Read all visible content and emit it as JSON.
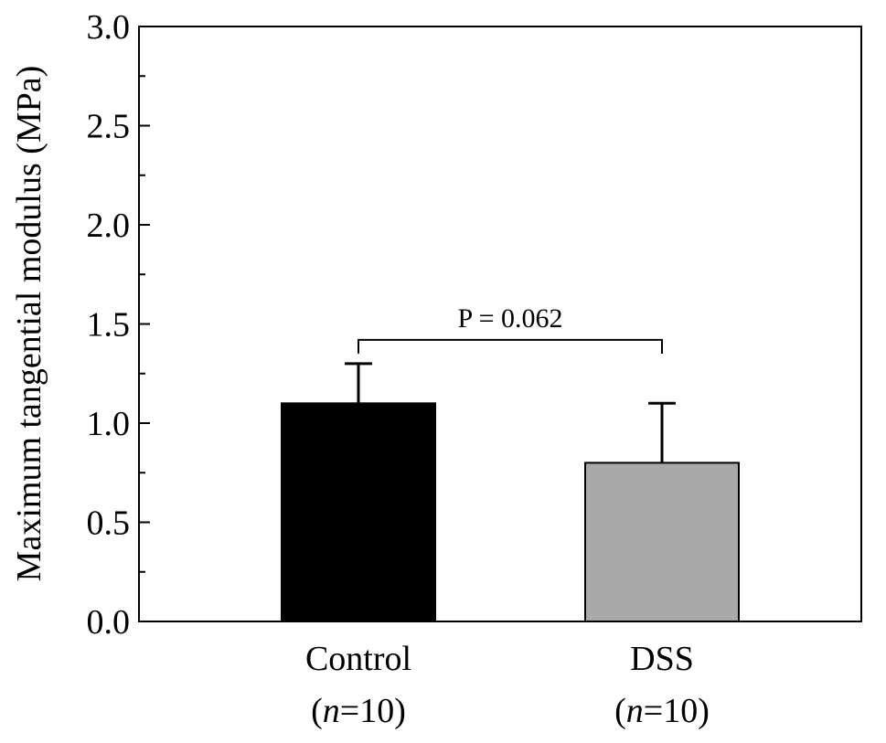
{
  "chart_data": {
    "type": "bar",
    "categories": [
      "Control",
      "DSS"
    ],
    "category_sublabels": [
      {
        "open": "(",
        "n": "n",
        "eq": "=10)"
      },
      {
        "open": "(",
        "n": "n",
        "eq": "=10)"
      }
    ],
    "values": [
      1.1,
      0.8
    ],
    "error_plus": [
      0.2,
      0.3
    ],
    "bar_colors": [
      "#000000",
      "#a9a9a9"
    ],
    "ylabel": "Maximum tangential modulus (MPa)",
    "xlabel": "",
    "ylim": [
      0,
      3.0
    ],
    "yticks": [
      "0.0",
      "0.5",
      "1.0",
      "1.5",
      "2.0",
      "2.5",
      "3.0"
    ],
    "annotation": {
      "text": "P = 0.062",
      "between": [
        0,
        1
      ],
      "level": 1.42,
      "drop_to": 1.35
    },
    "grid": false
  }
}
